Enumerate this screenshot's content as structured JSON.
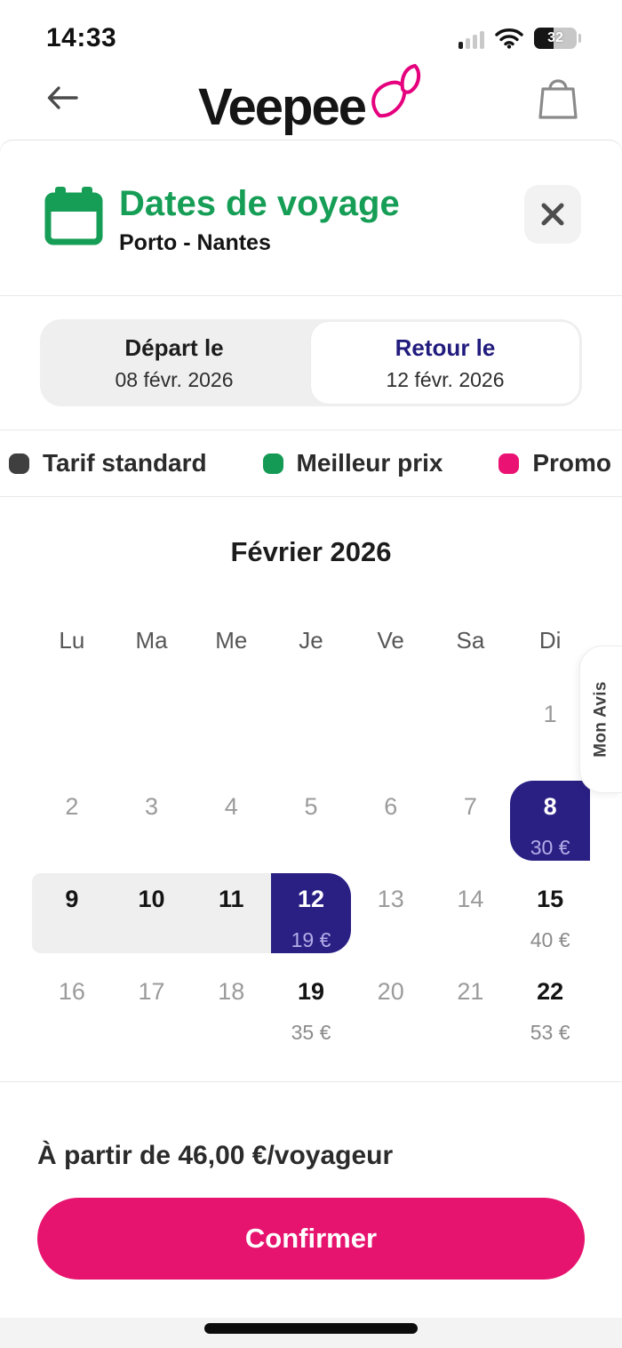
{
  "status_bar": {
    "time": "14:33",
    "battery_level": "32"
  },
  "header": {
    "logo_text": "Veepee"
  },
  "dialog": {
    "title": "Dates de voyage",
    "subtitle": "Porto - Nantes",
    "tabs": [
      {
        "label": "Départ le",
        "date": "08 févr. 2026",
        "selected": false
      },
      {
        "label": "Retour le",
        "date": "12 févr. 2026",
        "selected": true
      }
    ],
    "legend": [
      {
        "label": "Tarif standard",
        "color": "#3f3f3f"
      },
      {
        "label": "Meilleur prix",
        "color": "#149a55"
      },
      {
        "label": "Promo",
        "color": "#ea1272"
      }
    ],
    "calendar": {
      "month_title": "Février 2026",
      "weekdays": [
        "Lu",
        "Ma",
        "Me",
        "Je",
        "Ve",
        "Sa",
        "Di"
      ],
      "weeks": [
        [
          {},
          {},
          {},
          {},
          {},
          {},
          {
            "day": "1",
            "state": "muted"
          }
        ],
        [
          {
            "day": "2",
            "state": "muted"
          },
          {
            "day": "3",
            "state": "muted"
          },
          {
            "day": "4",
            "state": "muted"
          },
          {
            "day": "5",
            "state": "muted"
          },
          {
            "day": "6",
            "state": "muted"
          },
          {
            "day": "7",
            "state": "muted"
          },
          {
            "day": "8",
            "state": "range-start",
            "price": "30 €"
          }
        ],
        [
          {
            "day": "9",
            "state": "in-range"
          },
          {
            "day": "10",
            "state": "in-range"
          },
          {
            "day": "11",
            "state": "in-range"
          },
          {
            "day": "12",
            "state": "range-end",
            "price": "19 €"
          },
          {
            "day": "13",
            "state": "muted"
          },
          {
            "day": "14",
            "state": "muted"
          },
          {
            "day": "15",
            "state": "standard",
            "price": "40 €"
          }
        ],
        [
          {
            "day": "16",
            "state": "muted"
          },
          {
            "day": "17",
            "state": "muted"
          },
          {
            "day": "18",
            "state": "muted"
          },
          {
            "day": "19",
            "state": "standard",
            "price": "35 €"
          },
          {
            "day": "20",
            "state": "muted"
          },
          {
            "day": "21",
            "state": "muted"
          },
          {
            "day": "22",
            "state": "standard",
            "price": "53 €"
          }
        ]
      ],
      "selection": {
        "start_day": "8",
        "end_day": "12",
        "range_days": [
          "9",
          "10",
          "11"
        ]
      }
    },
    "footer": {
      "price_note": "À partir de 46,00 €/voyageur",
      "confirm_label": "Confirmer"
    }
  },
  "side_tab": {
    "label": "Mon Avis"
  },
  "colors": {
    "accent_green": "#169e56",
    "selected_navy": "#2a2084",
    "brand_pink": "#e6136f",
    "range_band": "#efeff0"
  }
}
